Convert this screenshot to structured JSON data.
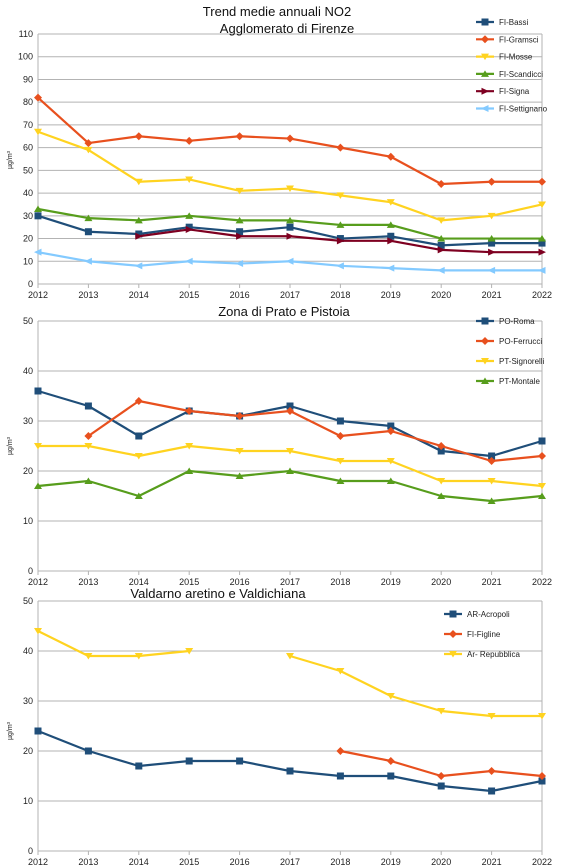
{
  "chart_data": [
    {
      "type": "line",
      "title": "Trend medie annuali NO2",
      "subtitle": "Agglomerato di Firenze",
      "ylabel": "µg/m³",
      "xlabel": "",
      "x": [
        2012,
        2013,
        2014,
        2015,
        2016,
        2017,
        2018,
        2019,
        2020,
        2021,
        2022
      ],
      "ylim": [
        0,
        110
      ],
      "ystep": 10,
      "grid": true,
      "legend_position": "right",
      "series": [
        {
          "name": "FI-Bassi",
          "color": "#1f4e79",
          "marker": "square",
          "values": [
            30,
            23,
            22,
            25,
            23,
            25,
            20,
            21,
            17,
            18,
            18
          ]
        },
        {
          "name": "FI-Gramsci",
          "color": "#e8501e",
          "marker": "diamond",
          "values": [
            82,
            62,
            65,
            63,
            65,
            64,
            60,
            56,
            44,
            45,
            45
          ]
        },
        {
          "name": "FI-Mosse",
          "color": "#ffd320",
          "marker": "triangle-down",
          "values": [
            67,
            59,
            45,
            46,
            41,
            42,
            39,
            36,
            28,
            30,
            35
          ]
        },
        {
          "name": "FI-Scandicci",
          "color": "#579d1c",
          "marker": "triangle-up",
          "values": [
            33,
            29,
            28,
            30,
            28,
            28,
            26,
            26,
            20,
            20,
            20
          ]
        },
        {
          "name": "FI-Signa",
          "color": "#7e0021",
          "marker": "arrow-right",
          "values": [
            null,
            null,
            21,
            24,
            21,
            21,
            19,
            19,
            15,
            14,
            14
          ]
        },
        {
          "name": "FI-Settignano",
          "color": "#83caff",
          "marker": "arrow-left",
          "values": [
            14,
            10,
            8,
            10,
            9,
            10,
            8,
            7,
            6,
            6,
            6
          ]
        }
      ]
    },
    {
      "type": "line",
      "title": "Zona di Prato e Pistoia",
      "subtitle": "",
      "ylabel": "µg/m³",
      "xlabel": "",
      "x": [
        2012,
        2013,
        2014,
        2015,
        2016,
        2017,
        2018,
        2019,
        2020,
        2021,
        2022
      ],
      "ylim": [
        0,
        50
      ],
      "ystep": 10,
      "grid": true,
      "legend_position": "right",
      "series": [
        {
          "name": "PO-Roma",
          "color": "#1f4e79",
          "marker": "square",
          "values": [
            36,
            33,
            27,
            32,
            31,
            33,
            30,
            29,
            24,
            23,
            26
          ]
        },
        {
          "name": "PO-Ferrucci",
          "color": "#e8501e",
          "marker": "diamond",
          "values": [
            null,
            27,
            34,
            32,
            31,
            32,
            27,
            28,
            25,
            22,
            23
          ]
        },
        {
          "name": "PT-Signorelli",
          "color": "#ffd320",
          "marker": "triangle-down",
          "values": [
            25,
            25,
            23,
            25,
            24,
            24,
            22,
            22,
            18,
            18,
            17
          ]
        },
        {
          "name": "PT-Montale",
          "color": "#579d1c",
          "marker": "triangle-up",
          "values": [
            17,
            18,
            15,
            20,
            19,
            20,
            18,
            18,
            15,
            14,
            15
          ]
        }
      ]
    },
    {
      "type": "line",
      "title": "Valdarno aretino e Valdichiana",
      "subtitle": "",
      "ylabel": "µg/m³",
      "xlabel": "",
      "x": [
        2012,
        2013,
        2014,
        2015,
        2016,
        2017,
        2018,
        2019,
        2020,
        2021,
        2022
      ],
      "ylim": [
        0,
        50
      ],
      "ystep": 10,
      "grid": true,
      "legend_position": "right",
      "series": [
        {
          "name": "AR-Acropoli",
          "color": "#1f4e79",
          "marker": "square",
          "values": [
            24,
            20,
            17,
            18,
            18,
            16,
            15,
            15,
            13,
            12,
            14
          ]
        },
        {
          "name": "FI-Figline",
          "color": "#e8501e",
          "marker": "diamond",
          "values": [
            null,
            null,
            null,
            null,
            null,
            null,
            20,
            18,
            15,
            16,
            15
          ]
        },
        {
          "name": "Ar- Repubblica",
          "color": "#ffd320",
          "marker": "triangle-down",
          "values": [
            44,
            39,
            39,
            40,
            null,
            39,
            36,
            31,
            28,
            27,
            27
          ]
        }
      ]
    }
  ]
}
